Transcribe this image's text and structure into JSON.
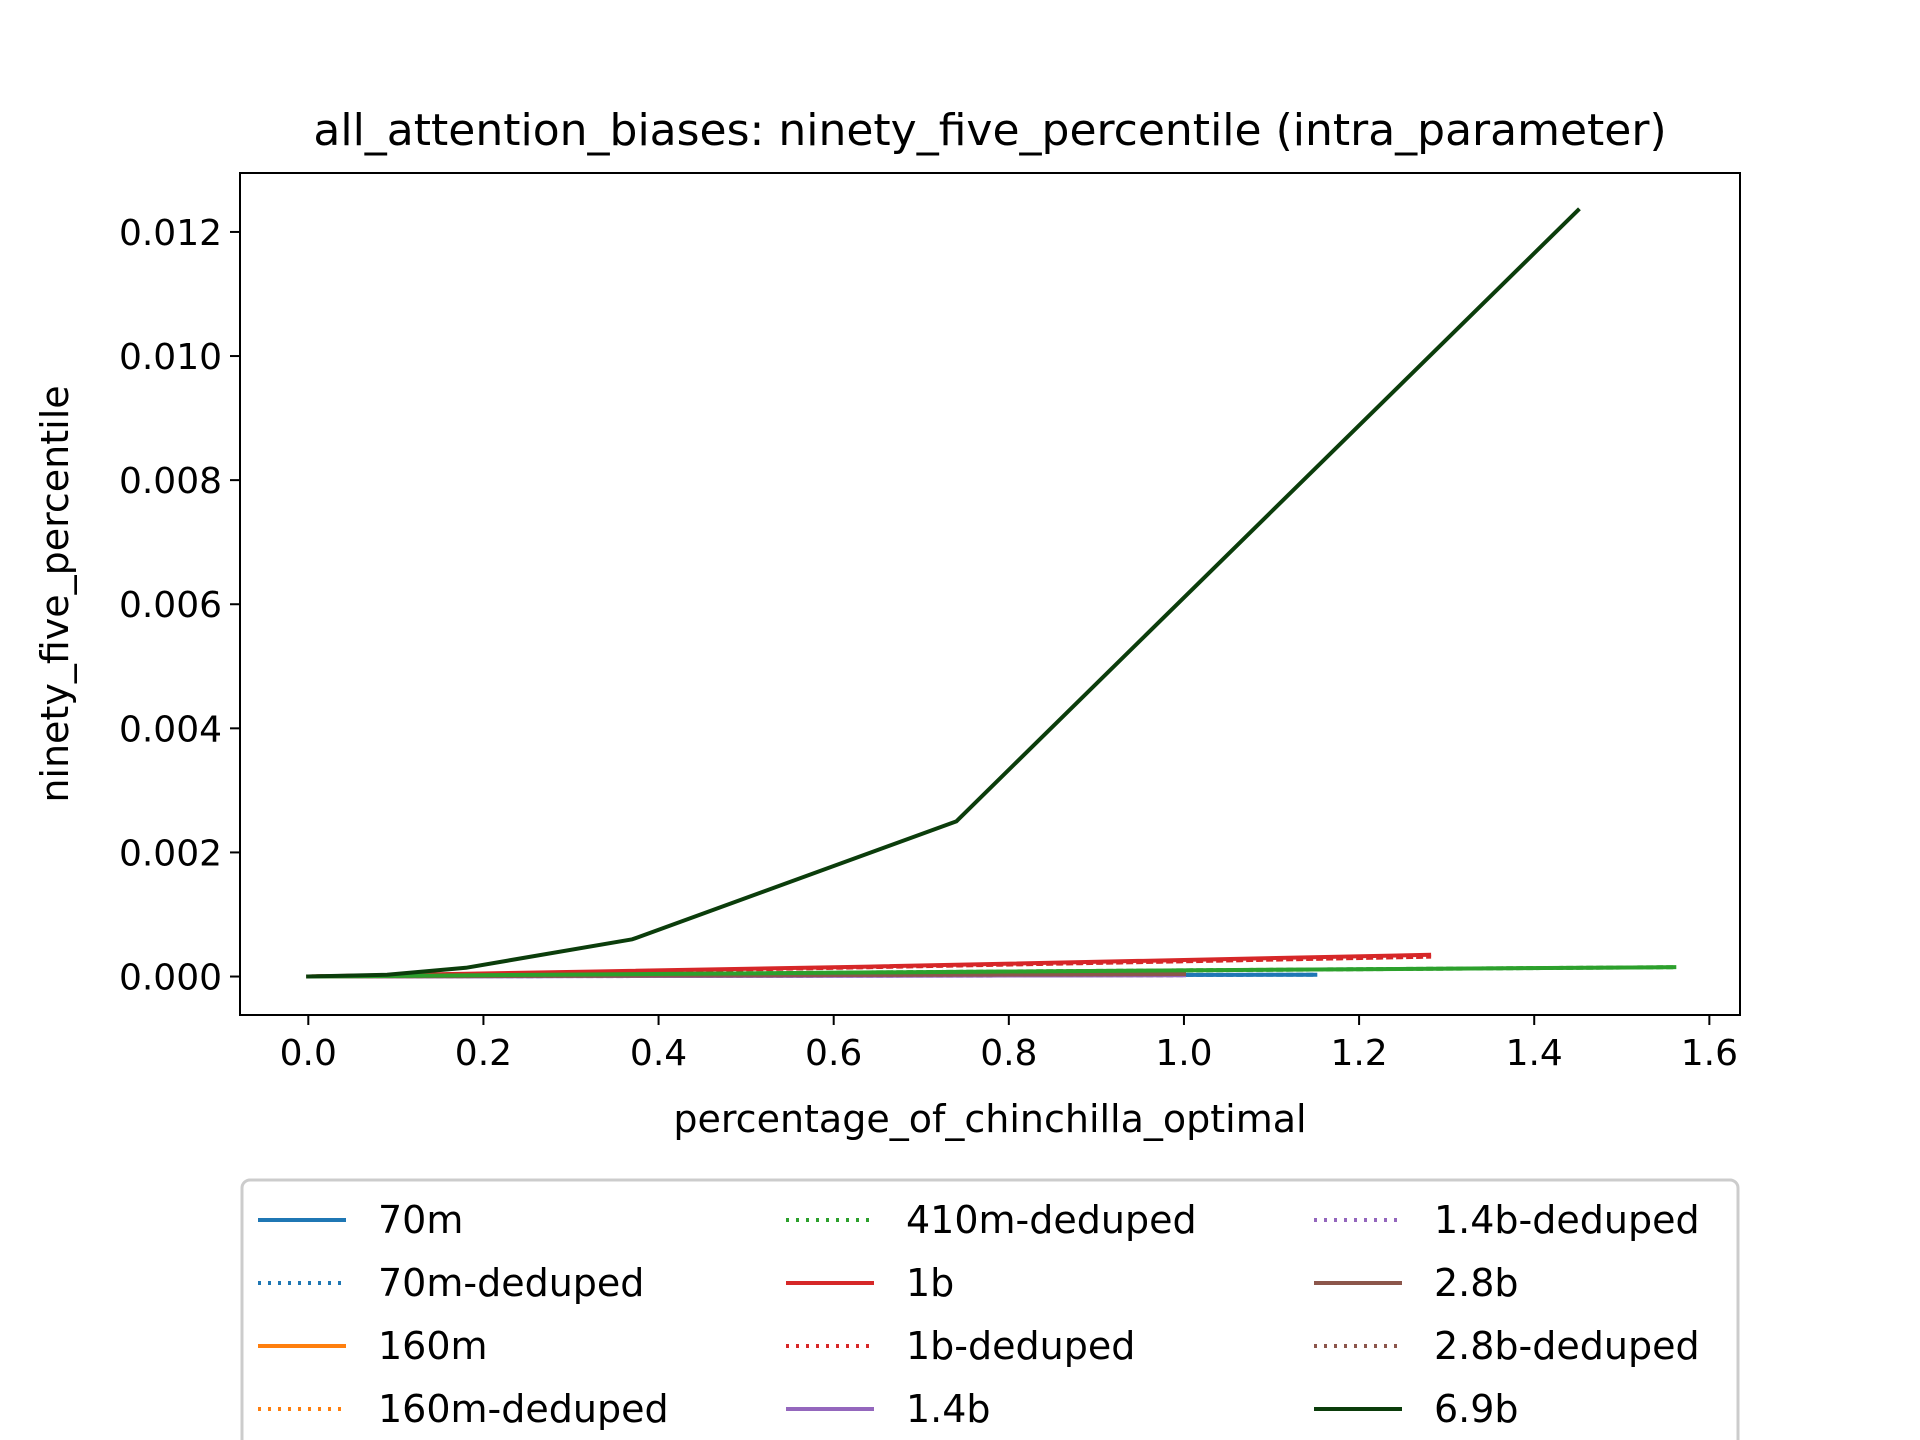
{
  "chart_data": {
    "type": "line",
    "title": "all_attention_biases: ninety_five_percentile (intra_parameter)",
    "xlabel": "percentage_of_chinchilla_optimal",
    "ylabel": "ninety_five_percentile",
    "xlim": [
      -0.078,
      1.635
    ],
    "ylim": [
      -0.00062,
      0.01295
    ],
    "xticks": [
      0.0,
      0.2,
      0.4,
      0.6,
      0.8,
      1.0,
      1.2,
      1.4,
      1.6
    ],
    "xtick_labels": [
      "0.0",
      "0.2",
      "0.4",
      "0.6",
      "0.8",
      "1.0",
      "1.2",
      "1.4",
      "1.6"
    ],
    "yticks": [
      0.0,
      0.002,
      0.004,
      0.006,
      0.008,
      0.01,
      0.012
    ],
    "ytick_labels": [
      "0.000",
      "0.002",
      "0.004",
      "0.006",
      "0.008",
      "0.010",
      "0.012"
    ],
    "grid": false,
    "legend_position": "below plot, 3 columns",
    "series": [
      {
        "name": "70m",
        "color": "#1f77b4",
        "dash": "solid",
        "x": [
          0.0,
          0.18,
          0.37,
          0.74,
          1.15
        ],
        "y": [
          0.0,
          5e-06,
          1e-05,
          2e-05,
          3e-05
        ]
      },
      {
        "name": "70m-deduped",
        "color": "#1f77b4",
        "dash": "dotted",
        "x": [
          0.0,
          0.18,
          0.37,
          0.74,
          1.15
        ],
        "y": [
          0.0,
          5e-06,
          1e-05,
          2e-05,
          3e-05
        ]
      },
      {
        "name": "160m",
        "color": "#ff7f0e",
        "dash": "solid",
        "x": [
          0.0,
          0.25,
          0.5,
          1.0
        ],
        "y": [
          0.0,
          1e-05,
          2e-05,
          4e-05
        ]
      },
      {
        "name": "160m-deduped",
        "color": "#ff7f0e",
        "dash": "dotted",
        "x": [
          0.0,
          0.25,
          0.5,
          1.0
        ],
        "y": [
          0.0,
          1e-05,
          2e-05,
          4e-05
        ]
      },
      {
        "name": "410m-deduped",
        "color": "#2ca02c",
        "dash": "dotted",
        "x": [
          0.0,
          0.39,
          0.78,
          1.56
        ],
        "y": [
          0.0,
          4e-05,
          8e-05,
          0.00015
        ]
      },
      {
        "name": "1b",
        "color": "#d62728",
        "dash": "solid",
        "x": [
          0.0,
          0.32,
          0.64,
          1.28
        ],
        "y": [
          0.0,
          8e-05,
          0.00016,
          0.00035
        ]
      },
      {
        "name": "1b-deduped",
        "color": "#d62728",
        "dash": "dotted",
        "x": [
          0.0,
          0.32,
          0.64,
          1.28
        ],
        "y": [
          0.0,
          7e-05,
          0.00015,
          0.00032
        ]
      },
      {
        "name": "1.4b",
        "color": "#9467bd",
        "dash": "solid",
        "x": [
          0.0,
          0.25,
          0.5,
          1.0
        ],
        "y": [
          0.0,
          5e-06,
          1e-05,
          2e-05
        ]
      },
      {
        "name": "1.4b-deduped",
        "color": "#9467bd",
        "dash": "dotted",
        "x": [
          0.0,
          0.25,
          0.5,
          1.0
        ],
        "y": [
          0.0,
          5e-06,
          1e-05,
          2e-05
        ]
      },
      {
        "name": "2.8b",
        "color": "#8c564b",
        "dash": "solid",
        "x": [
          0.0,
          0.25,
          0.5,
          1.0
        ],
        "y": [
          0.0,
          1e-05,
          2e-05,
          4e-05
        ]
      },
      {
        "name": "2.8b-deduped",
        "color": "#8c564b",
        "dash": "dotted",
        "x": [
          0.0,
          0.25,
          0.5,
          1.0
        ],
        "y": [
          0.0,
          1e-05,
          2e-05,
          4e-05
        ]
      },
      {
        "name": "410m",
        "legend": false,
        "color": "#2ca02c",
        "dash": "solid",
        "x": [
          0.0,
          0.39,
          0.78,
          1.56
        ],
        "y": [
          0.0,
          4e-05,
          8e-05,
          0.00015
        ]
      },
      {
        "name": "6.9b",
        "color": "#0b3d0b",
        "dash": "solid",
        "x": [
          0.0,
          0.09,
          0.18,
          0.37,
          0.74,
          1.45
        ],
        "y": [
          0.0,
          3e-05,
          0.00014,
          0.0006,
          0.0025,
          0.01235
        ]
      }
    ],
    "legend_entries": [
      "70m",
      "70m-deduped",
      "160m",
      "160m-deduped",
      "410m-deduped",
      "1b",
      "1b-deduped",
      "1.4b",
      "1.4b-deduped",
      "2.8b",
      "2.8b-deduped",
      "6.9b"
    ]
  }
}
